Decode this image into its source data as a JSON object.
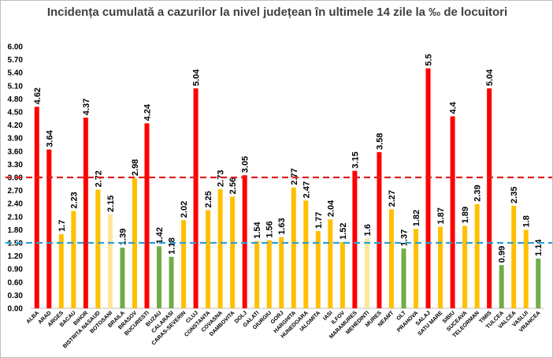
{
  "chart_data": {
    "type": "bar",
    "title": "Incidența cumulată a cazurilor la nivel județean în ultimele 14 zile la ‰ de locuitori",
    "xlabel": "",
    "ylabel": "",
    "ylim": [
      0,
      6
    ],
    "yticks": [
      "0.00",
      "0.30",
      "0.60",
      "0.90",
      "1.20",
      "1.50",
      "1.80",
      "2.10",
      "2.40",
      "2.70",
      "3.00",
      "3.30",
      "3.60",
      "3.90",
      "4.20",
      "4.50",
      "4.80",
      "5.10",
      "5.40",
      "5.70",
      "6.00"
    ],
    "categories": [
      "ALBA",
      "ARAD",
      "ARGES",
      "BACAU",
      "BIHOR",
      "BISTRITA NASAUD",
      "BOTOSANI",
      "BRAILA",
      "BRASOV",
      "BUCURESTI",
      "BUZAU",
      "CALARASI",
      "CARAS-SEVERIN",
      "CLUJ",
      "CONSTANTA",
      "COVASNA",
      "DAMBOVITA",
      "DOLJ",
      "GALATI",
      "GIURGIU",
      "GORJ",
      "HARGHITA",
      "HUNEDOARA",
      "IALOMITA",
      "IASI",
      "ILFOV",
      "MARAMURES",
      "MEHEDINTI",
      "MURES",
      "NEAMT",
      "OLT",
      "PRAHOVA",
      "SALAJ",
      "SATU MARE",
      "SIBIU",
      "SUCEAVA",
      "TELEORMAN",
      "TIMIS",
      "TULCEA",
      "VALCEA",
      "VASLUI",
      "VRANCEA"
    ],
    "values": [
      4.62,
      3.64,
      1.7,
      2.23,
      4.37,
      2.72,
      2.15,
      1.39,
      2.98,
      4.24,
      1.42,
      1.18,
      2.02,
      5.04,
      2.25,
      2.73,
      2.56,
      3.05,
      1.54,
      1.56,
      1.63,
      2.77,
      2.47,
      1.77,
      2.04,
      1.52,
      3.15,
      1.6,
      3.58,
      2.27,
      1.37,
      1.82,
      5.5,
      1.87,
      4.4,
      1.89,
      2.39,
      5.04,
      0.99,
      2.35,
      1.8,
      1.14
    ],
    "data_labels": [
      "4.62",
      "3.64",
      "1.7",
      "2.23",
      "4.37",
      "2.72",
      "2.15",
      "1.39",
      "2.98",
      "4.24",
      "1.42",
      "1.18",
      "2.02",
      "5.04",
      "2.25",
      "2.73",
      "2.56",
      "3.05",
      "1.54",
      "1.56",
      "1.63",
      "2.77",
      "2.47",
      "1.77",
      "2.04",
      "1.52",
      "3.15",
      "1.6",
      "3.58",
      "2.27",
      "1.37",
      "1.82",
      "5.5",
      "1.87",
      "4.4",
      "1.89",
      "2.39",
      "5.04",
      "0.99",
      "2.35",
      "1.8",
      "1.14"
    ],
    "thresholds": [
      {
        "value": 3.0,
        "color": "#e02020",
        "style": "dashed"
      },
      {
        "value": 1.5,
        "color": "#2e9fd6",
        "style": "dashed"
      }
    ],
    "colors": {
      "red": "#ff0000",
      "yellow": "#ffc000",
      "green": "#70ad47",
      "pale": "#ffe699"
    },
    "bar_colors": [
      "red",
      "red",
      "yellow",
      "yellow",
      "red",
      "yellow",
      "pale",
      "green",
      "yellow",
      "red",
      "green",
      "green",
      "yellow",
      "red",
      "yellow",
      "yellow",
      "yellow",
      "red",
      "yellow",
      "yellow",
      "yellow",
      "yellow",
      "yellow",
      "yellow",
      "yellow",
      "yellow",
      "red",
      "pale",
      "red",
      "yellow",
      "green",
      "yellow",
      "red",
      "yellow",
      "red",
      "yellow",
      "yellow",
      "red",
      "green",
      "yellow",
      "yellow",
      "green"
    ],
    "grid": false,
    "legend": "none"
  }
}
